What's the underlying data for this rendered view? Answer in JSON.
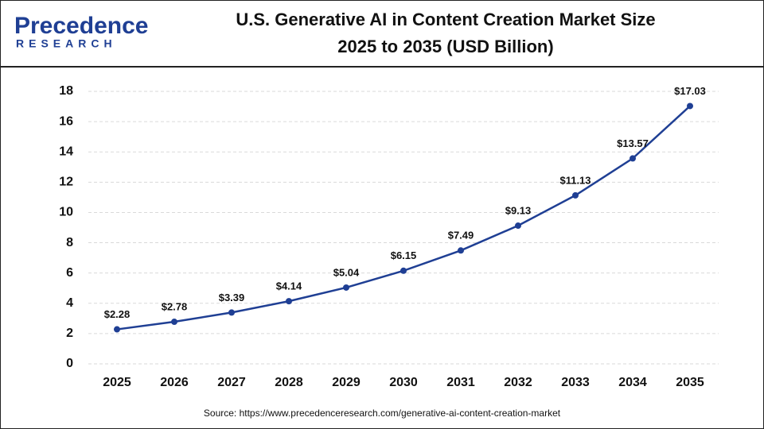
{
  "logo": {
    "name": "Precedence",
    "tagline": "RESEARCH"
  },
  "source": "Source: https://www.precedenceresearch.com/generative-ai-content-creation-market",
  "chart_data": {
    "type": "line",
    "title": "U.S. Generative AI in Content Creation Market Size",
    "subtitle": "2025 to 2035 (USD Billion)",
    "categories": [
      "2025",
      "2026",
      "2027",
      "2028",
      "2029",
      "2030",
      "2031",
      "2032",
      "2033",
      "2034",
      "2035"
    ],
    "values": [
      2.28,
      2.78,
      3.39,
      4.14,
      5.04,
      6.15,
      7.49,
      9.13,
      11.13,
      13.57,
      17.03
    ],
    "value_labels": [
      "$2.28",
      "$2.78",
      "$3.39",
      "$4.14",
      "$5.04",
      "$6.15",
      "$7.49",
      "$9.13",
      "$11.13",
      "$13.57",
      "$17.03"
    ],
    "color": "#1f3f94",
    "ylim": [
      0,
      18
    ],
    "yticks": [
      0,
      2,
      4,
      6,
      8,
      10,
      12,
      14,
      16,
      18
    ],
    "grid": true
  }
}
